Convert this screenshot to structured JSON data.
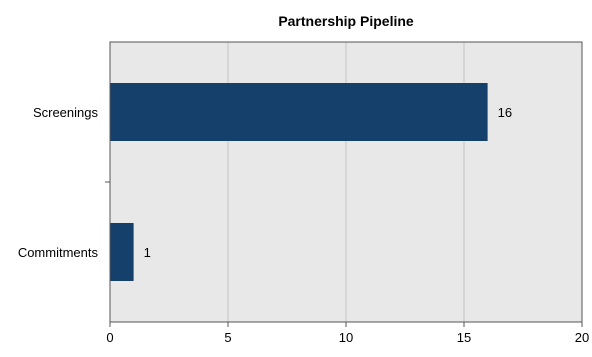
{
  "chart_data": {
    "type": "bar",
    "orientation": "horizontal",
    "title": "Partnership Pipeline",
    "xlabel": "",
    "ylabel": "",
    "categories": [
      "Screenings",
      "Commitments"
    ],
    "values": [
      16,
      1
    ],
    "xlim": [
      0,
      20
    ],
    "xticks": [
      0,
      5,
      10,
      15,
      20
    ],
    "grid": true,
    "legend": "none",
    "data_labels": true,
    "colors": {
      "bar": "#15406b",
      "plot_background": "#e8e8e8",
      "grid": "#c4c4c4",
      "border": "#555555",
      "text": "#000000"
    }
  }
}
